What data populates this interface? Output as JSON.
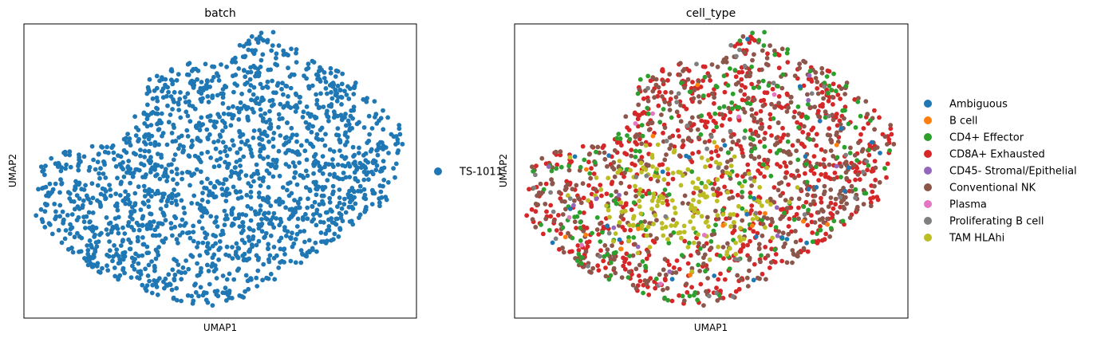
{
  "chart_data": [
    {
      "type": "scatter",
      "title": "batch",
      "xlabel": "UMAP1",
      "ylabel": "UMAP2",
      "grid": false,
      "ticks": false,
      "xlim": [
        0,
        100
      ],
      "ylim": [
        0,
        100
      ],
      "legend": {
        "placement": "right",
        "entries": [
          {
            "name": "TS-1011",
            "color": "#1f77b4"
          }
        ]
      },
      "series": [
        {
          "name": "TS-1011",
          "color": "#1f77b4",
          "point_count": 1800
        }
      ]
    },
    {
      "type": "scatter",
      "title": "cell_type",
      "xlabel": "UMAP1",
      "ylabel": "UMAP2",
      "grid": false,
      "ticks": false,
      "xlim": [
        0,
        100
      ],
      "ylim": [
        0,
        100
      ],
      "legend": {
        "placement": "right",
        "entries": [
          {
            "name": "Ambiguous",
            "color": "#1f77b4"
          },
          {
            "name": "B cell",
            "color": "#ff7f0e"
          },
          {
            "name": "CD4+ Effector",
            "color": "#2ca02c"
          },
          {
            "name": "CD8A+ Exhausted",
            "color": "#d62728"
          },
          {
            "name": "CD45- Stromal/Epithelial",
            "color": "#9467bd"
          },
          {
            "name": "Conventional NK",
            "color": "#8c564b"
          },
          {
            "name": "Plasma",
            "color": "#e377c2"
          },
          {
            "name": "Proliferating B cell",
            "color": "#7f7f7f"
          },
          {
            "name": "TAM HLAhi",
            "color": "#bcbd22"
          }
        ]
      },
      "series": [
        {
          "name": "Ambiguous",
          "color": "#1f77b4",
          "point_count": 30
        },
        {
          "name": "B cell",
          "color": "#ff7f0e",
          "point_count": 15
        },
        {
          "name": "CD4+ Effector",
          "color": "#2ca02c",
          "point_count": 230
        },
        {
          "name": "CD8A+ Exhausted",
          "color": "#d62728",
          "point_count": 720
        },
        {
          "name": "CD45- Stromal/Epithelial",
          "color": "#9467bd",
          "point_count": 12
        },
        {
          "name": "Conventional NK",
          "color": "#8c564b",
          "point_count": 560
        },
        {
          "name": "Plasma",
          "color": "#e377c2",
          "point_count": 8
        },
        {
          "name": "Proliferating B cell",
          "color": "#7f7f7f",
          "point_count": 45
        },
        {
          "name": "TAM HLAhi",
          "color": "#bcbd22",
          "point_count": 180
        }
      ]
    }
  ]
}
